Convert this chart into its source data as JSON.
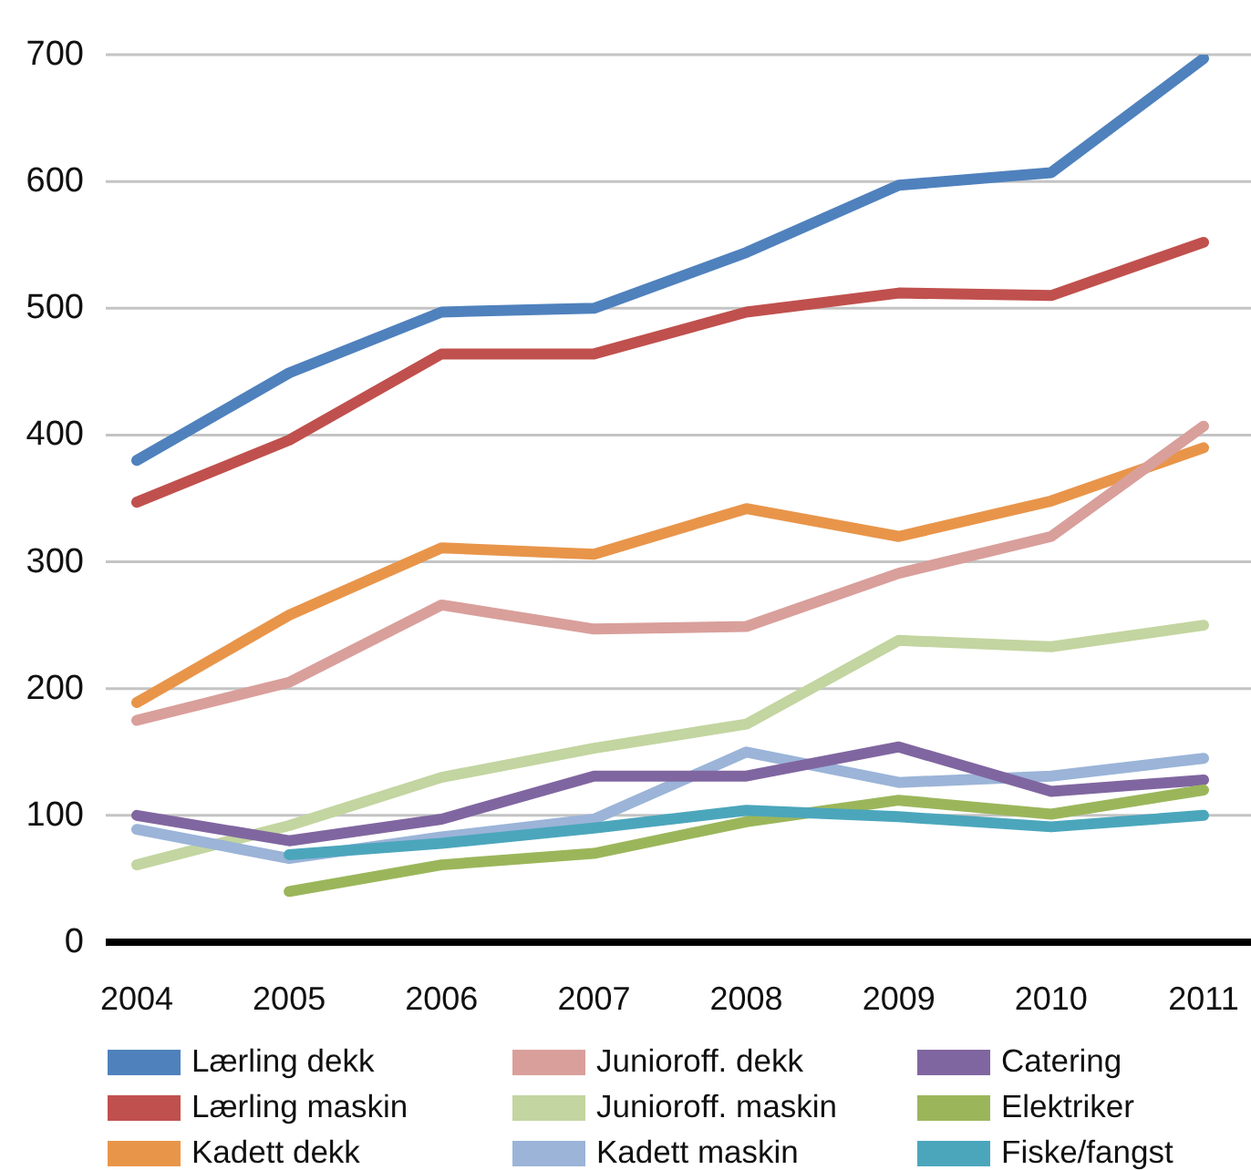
{
  "chart_data": {
    "type": "line",
    "categories": [
      "2004",
      "2005",
      "2006",
      "2007",
      "2008",
      "2009",
      "2010",
      "2011"
    ],
    "series": [
      {
        "name": "Lærling dekk",
        "color": "#4f81bd",
        "values": [
          380,
          449,
          497,
          500,
          544,
          597,
          607,
          697
        ]
      },
      {
        "name": "Lærling maskin",
        "color": "#c0504d",
        "values": [
          347,
          396,
          464,
          464,
          497,
          512,
          510,
          552
        ]
      },
      {
        "name": "Kadett dekk",
        "color": "#e8954a",
        "values": [
          189,
          258,
          311,
          306,
          342,
          320,
          348,
          390
        ]
      },
      {
        "name": "Junioroff. dekk",
        "color": "#d99f9b",
        "values": [
          175,
          205,
          266,
          247,
          249,
          291,
          320,
          407
        ]
      },
      {
        "name": "Junioroff. maskin",
        "color": "#c3d5a0",
        "values": [
          61,
          92,
          130,
          153,
          172,
          238,
          233,
          250
        ]
      },
      {
        "name": "Kadett maskin",
        "color": "#9bb4d8",
        "values": [
          89,
          66,
          83,
          97,
          150,
          126,
          131,
          145
        ]
      },
      {
        "name": "Catering",
        "color": "#8066a0",
        "values": [
          100,
          80,
          97,
          131,
          131,
          154,
          119,
          128
        ]
      },
      {
        "name": "Elektriker",
        "color": "#9bb65a",
        "values": [
          null,
          40,
          61,
          70,
          95,
          112,
          101,
          120
        ]
      },
      {
        "name": "Fiske/fangst",
        "color": "#4ba6bc",
        "values": [
          null,
          69,
          78,
          90,
          104,
          99,
          91,
          100
        ]
      }
    ],
    "ylim": [
      0,
      700
    ],
    "yticks": [
      0,
      100,
      200,
      300,
      400,
      500,
      600,
      700
    ],
    "grid": "y",
    "legend": "bottom",
    "marker": "none",
    "line_style": "solid"
  }
}
